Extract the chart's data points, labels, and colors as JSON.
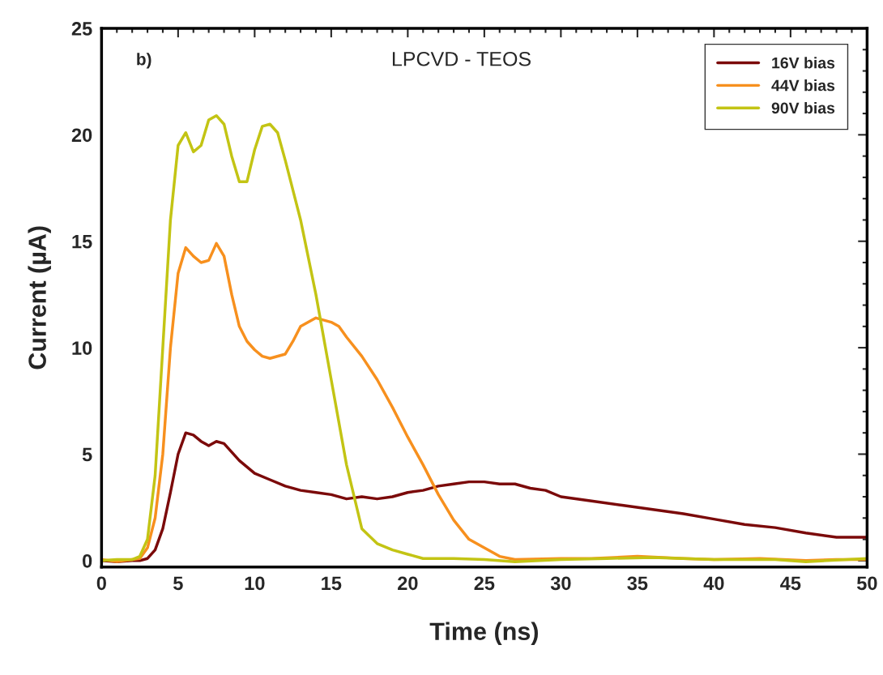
{
  "chart_data": {
    "type": "line",
    "xlabel": "Time (ns)",
    "ylabel": "Current (µA)",
    "annotations": [
      "b)",
      "LPCVD - TEOS"
    ],
    "xlim": [
      0,
      50
    ],
    "xticks": [
      0,
      5,
      10,
      15,
      20,
      25,
      30,
      35,
      40,
      45,
      50
    ],
    "ylim": [
      -0.3,
      25
    ],
    "yticks": [
      0,
      5,
      10,
      15,
      20,
      25
    ],
    "grid": false,
    "legend": "top right",
    "marker": "none",
    "line_style": "solid",
    "series": [
      {
        "name": "16V bias",
        "color": "#7b0a0a",
        "x": [
          0,
          1,
          2,
          2.5,
          3,
          3.5,
          4,
          4.5,
          5,
          5.5,
          6,
          6.5,
          7,
          7.5,
          8,
          8.5,
          9,
          10,
          11,
          12,
          13,
          14,
          15,
          16,
          17,
          18,
          19,
          20,
          21,
          22,
          23,
          24,
          25,
          26,
          27,
          28,
          29,
          30,
          32,
          34,
          36,
          38,
          40,
          42,
          44,
          46,
          48,
          49,
          50
        ],
        "values": [
          0,
          -0.05,
          0,
          0,
          0.1,
          0.5,
          1.5,
          3.2,
          5,
          6,
          5.9,
          5.6,
          5.4,
          5.6,
          5.5,
          5.1,
          4.7,
          4.1,
          3.8,
          3.5,
          3.3,
          3.2,
          3.1,
          2.9,
          3.0,
          2.9,
          3.0,
          3.2,
          3.3,
          3.5,
          3.6,
          3.7,
          3.7,
          3.6,
          3.6,
          3.4,
          3.3,
          3.0,
          2.8,
          2.6,
          2.4,
          2.2,
          1.95,
          1.7,
          1.55,
          1.3,
          1.1,
          1.1,
          1.1
        ]
      },
      {
        "name": "44V bias",
        "color": "#f7901e",
        "x": [
          0,
          1,
          2,
          2.5,
          3,
          3.5,
          4,
          4.5,
          5,
          5.5,
          6,
          6.5,
          7,
          7.5,
          8,
          8.5,
          9,
          9.5,
          10,
          10.5,
          11,
          12,
          12.5,
          13,
          14,
          15,
          15.5,
          16,
          17,
          18,
          19,
          20,
          21,
          22,
          23,
          24,
          25,
          26,
          27,
          30,
          32,
          35,
          38,
          40,
          43,
          46,
          48,
          50
        ],
        "values": [
          0.05,
          -0.05,
          0.05,
          0.1,
          0.6,
          2,
          5,
          10,
          13.5,
          14.7,
          14.3,
          14,
          14.1,
          14.9,
          14.3,
          12.5,
          11,
          10.3,
          9.9,
          9.6,
          9.5,
          9.7,
          10.3,
          11,
          11.4,
          11.2,
          11,
          10.5,
          9.6,
          8.5,
          7.2,
          5.8,
          4.5,
          3.1,
          1.9,
          1.0,
          0.6,
          0.2,
          0.05,
          0.1,
          0.1,
          0.2,
          0.1,
          0.05,
          0.1,
          0,
          0.05,
          0.05
        ]
      },
      {
        "name": "90V bias",
        "color": "#c3c414",
        "x": [
          0,
          1,
          2,
          2.5,
          3,
          3.5,
          4,
          4.5,
          5,
          5.5,
          6,
          6.5,
          7,
          7.5,
          8,
          8.5,
          9,
          9.5,
          10,
          10.5,
          11,
          11.5,
          12,
          13,
          14,
          15,
          16,
          17,
          18,
          19,
          20,
          21,
          23,
          25,
          27,
          30,
          33,
          36,
          40,
          44,
          46,
          50
        ],
        "values": [
          0,
          0.05,
          0.05,
          0.2,
          1,
          4,
          10,
          16,
          19.5,
          20.1,
          19.2,
          19.5,
          20.7,
          20.9,
          20.5,
          19,
          17.8,
          17.8,
          19.3,
          20.4,
          20.5,
          20.1,
          18.8,
          16,
          12.5,
          8.5,
          4.5,
          1.5,
          0.8,
          0.5,
          0.3,
          0.1,
          0.1,
          0.05,
          -0.05,
          0.05,
          0.1,
          0.15,
          0.05,
          0.05,
          -0.05,
          0.1
        ]
      }
    ]
  }
}
